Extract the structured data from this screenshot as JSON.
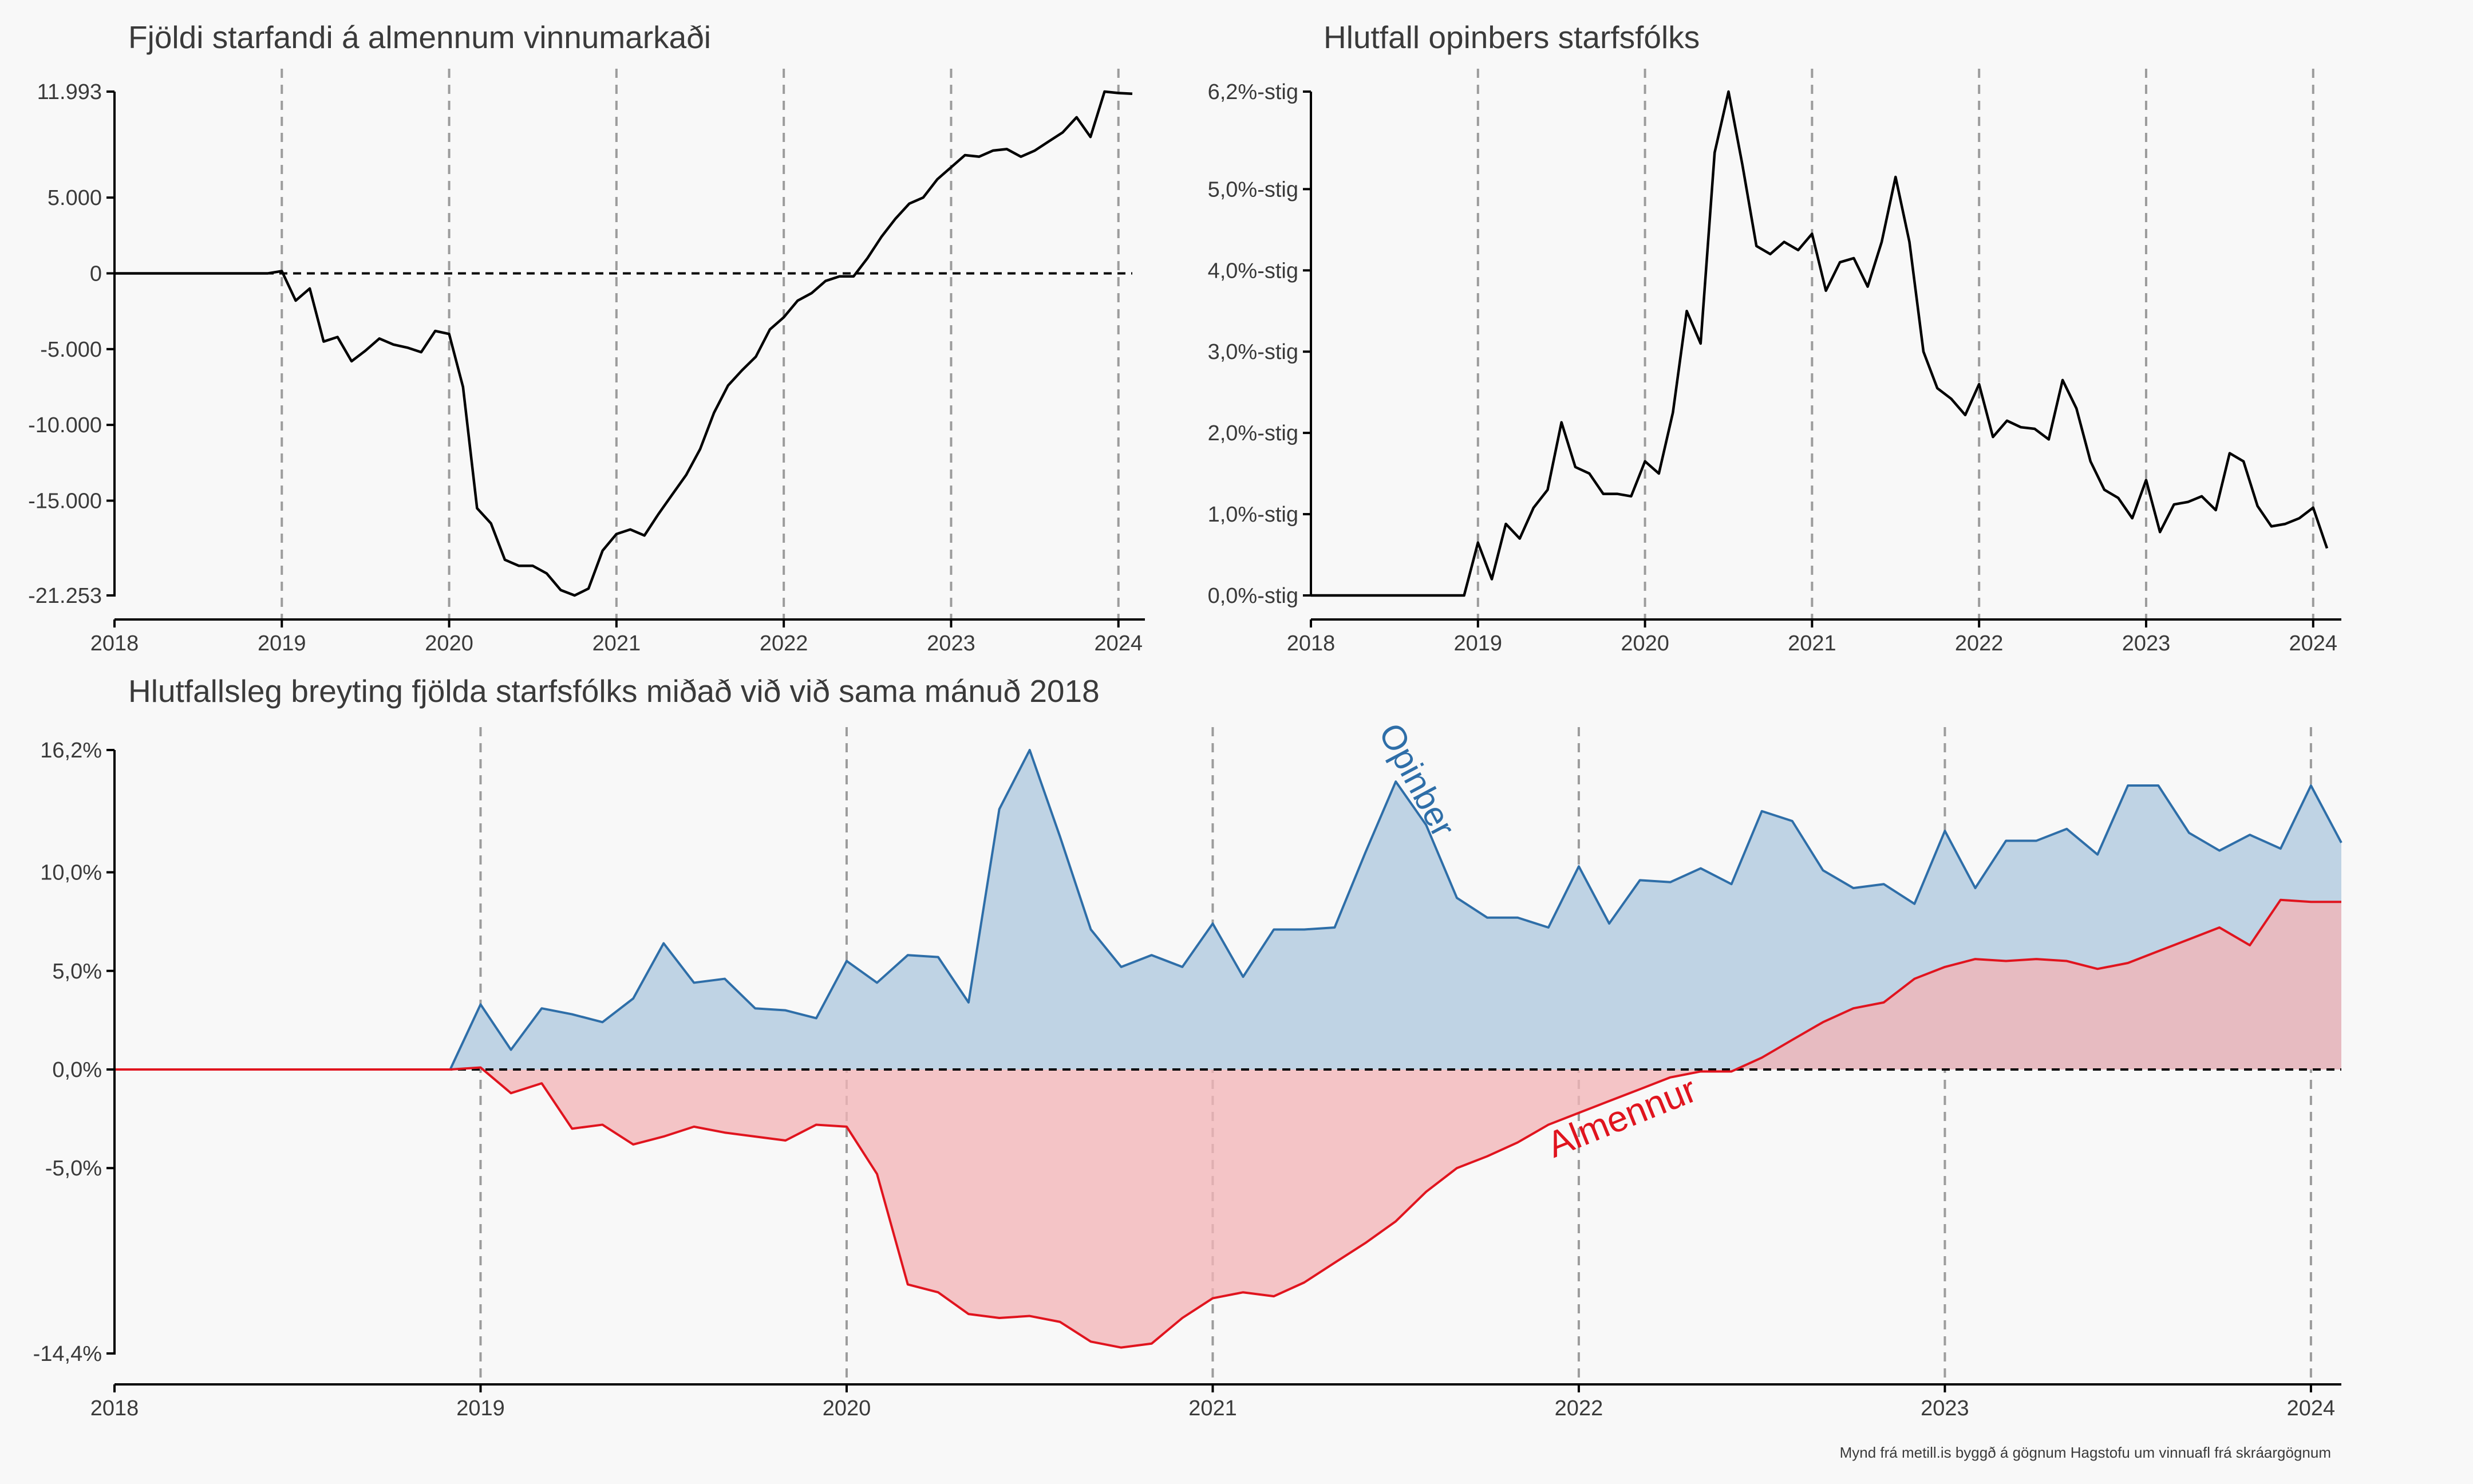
{
  "footer": {
    "caption": "Mynd frá metill.is byggð á gögnum Hagstofu um vinnuafl frá skráargögnum"
  },
  "colors": {
    "opinber": "#2e6ea8",
    "opinber_fill": "#bfd3e4",
    "almennur": "#e0141e",
    "almennur_fill": "#f2b5b7",
    "overlap_fill": "#b8a3b3",
    "line": "#000000"
  },
  "chart_data": [
    {
      "type": "line",
      "title": "Fjöldi starfandi á almennum vinnumarkaði",
      "x_ticks": [
        "2018",
        "2019",
        "2020",
        "2021",
        "2022",
        "2023",
        "2024"
      ],
      "y_ticks": [
        "11.993",
        "5.000",
        "0",
        "-5.000",
        "-10.000",
        "-15.000",
        "-21.253"
      ],
      "ylim": [
        -21253,
        11993
      ],
      "xlim": [
        2018,
        2024.083
      ],
      "grid": "vertical dashed at years",
      "series": [
        {
          "x": [
            2018,
            2018.917,
            2019.0,
            2019.083,
            2019.167,
            2019.25,
            2019.333,
            2019.417,
            2019.5,
            2019.583,
            2019.667,
            2019.75,
            2019.833,
            2019.917,
            2020.0,
            2020.083,
            2020.167,
            2020.25,
            2020.333,
            2020.417,
            2020.5,
            2020.583,
            2020.667,
            2020.75,
            2020.833,
            2020.917,
            2021.0,
            2021.083,
            2021.167,
            2021.25,
            2021.333,
            2021.417,
            2021.5,
            2021.583,
            2021.667,
            2021.75,
            2021.833,
            2021.917,
            2022.0,
            2022.083,
            2022.167,
            2022.25,
            2022.333,
            2022.417,
            2022.5,
            2022.583,
            2022.667,
            2022.75,
            2022.833,
            2022.917,
            2023.0,
            2023.083,
            2023.167,
            2023.25,
            2023.333,
            2023.417,
            2023.5,
            2023.583,
            2023.667,
            2023.75,
            2023.833,
            2023.917,
            2024.0,
            2024.083
          ],
          "y": [
            0,
            0,
            150,
            -1800,
            -1000,
            -4500,
            -4200,
            -5800,
            -5100,
            -4300,
            -4700,
            -4900,
            -5200,
            -3800,
            -4000,
            -7500,
            -15500,
            -16500,
            -18900,
            -19300,
            -19300,
            -19800,
            -20900,
            -21253,
            -20800,
            -18300,
            -17200,
            -16900,
            -17300,
            -15900,
            -14600,
            -13300,
            -11600,
            -9200,
            -7400,
            -6400,
            -5500,
            -3700,
            -2900,
            -1800,
            -1300,
            -500,
            -200,
            -200,
            1000,
            2400,
            3600,
            4600,
            5000,
            6200,
            7000,
            7800,
            7700,
            8100,
            8200,
            7700,
            8100,
            8700,
            9300,
            10300,
            9000,
            11993,
            11900,
            11850
          ]
        }
      ]
    },
    {
      "type": "line",
      "title": "Hlutfall opinbers starfsfólks",
      "x_ticks": [
        "2018",
        "2019",
        "2020",
        "2021",
        "2022",
        "2023",
        "2024"
      ],
      "y_ticks": [
        "6,2%-stig",
        "5,0%-stig",
        "4,0%-stig",
        "3,0%-stig",
        "2,0%-stig",
        "1,0%-stig",
        "0,0%-stig"
      ],
      "ylim": [
        0,
        6.2
      ],
      "xlim": [
        2018,
        2024.083
      ],
      "grid": "vertical dashed at years",
      "series": [
        {
          "x": [
            2018,
            2018.917,
            2019.0,
            2019.083,
            2019.167,
            2019.25,
            2019.333,
            2019.417,
            2019.5,
            2019.583,
            2019.667,
            2019.75,
            2019.833,
            2019.917,
            2020.0,
            2020.083,
            2020.167,
            2020.25,
            2020.333,
            2020.417,
            2020.5,
            2020.583,
            2020.667,
            2020.75,
            2020.833,
            2020.917,
            2021.0,
            2021.083,
            2021.167,
            2021.25,
            2021.333,
            2021.417,
            2021.5,
            2021.583,
            2021.667,
            2021.75,
            2021.833,
            2021.917,
            2022.0,
            2022.083,
            2022.167,
            2022.25,
            2022.333,
            2022.417,
            2022.5,
            2022.583,
            2022.667,
            2022.75,
            2022.833,
            2022.917,
            2023.0,
            2023.083,
            2023.167,
            2023.25,
            2023.333,
            2023.417,
            2023.5,
            2023.583,
            2023.667,
            2023.75,
            2023.833,
            2023.917,
            2024.0,
            2024.083
          ],
          "y": [
            0,
            0,
            0.65,
            0.2,
            0.88,
            0.7,
            1.08,
            1.3,
            2.13,
            1.58,
            1.5,
            1.25,
            1.25,
            1.22,
            1.65,
            1.5,
            2.25,
            3.5,
            3.1,
            5.45,
            6.2,
            5.3,
            4.3,
            4.2,
            4.35,
            4.25,
            4.45,
            3.75,
            4.1,
            4.15,
            3.8,
            4.35,
            5.15,
            4.35,
            3.0,
            2.55,
            2.42,
            2.22,
            2.6,
            1.95,
            2.15,
            2.07,
            2.05,
            1.92,
            2.65,
            2.3,
            1.65,
            1.3,
            1.2,
            0.95,
            1.42,
            0.78,
            1.12,
            1.15,
            1.22,
            1.05,
            1.75,
            1.65,
            1.1,
            0.85,
            0.88,
            0.95,
            1.08,
            0.58
          ]
        }
      ]
    },
    {
      "type": "area",
      "title": "Hlutfallsleg breyting fjölda starfsfólks miðað við við sama mánuð 2018",
      "x_ticks": [
        "2018",
        "2019",
        "2020",
        "2021",
        "2022",
        "2023",
        "2024"
      ],
      "y_ticks": [
        "16,2%",
        "10,0%",
        "5,0%",
        "0,0%",
        "-5,0%",
        "-14,4%"
      ],
      "ylim": [
        -14.4,
        16.2
      ],
      "xlim": [
        2018,
        2024.083
      ],
      "grid": "vertical dashed at years",
      "series": [
        {
          "name": "Opinber",
          "x": [
            2018,
            2018.917,
            2019.0,
            2019.083,
            2019.167,
            2019.25,
            2019.333,
            2019.417,
            2019.5,
            2019.583,
            2019.667,
            2019.75,
            2019.833,
            2019.917,
            2020.0,
            2020.083,
            2020.167,
            2020.25,
            2020.333,
            2020.417,
            2020.5,
            2020.583,
            2020.667,
            2020.75,
            2020.833,
            2020.917,
            2021.0,
            2021.083,
            2021.167,
            2021.25,
            2021.333,
            2021.417,
            2021.5,
            2021.583,
            2021.667,
            2021.75,
            2021.833,
            2021.917,
            2022.0,
            2022.083,
            2022.167,
            2022.25,
            2022.333,
            2022.417,
            2022.5,
            2022.583,
            2022.667,
            2022.75,
            2022.833,
            2022.917,
            2023.0,
            2023.083,
            2023.167,
            2023.25,
            2023.333,
            2023.417,
            2023.5,
            2023.583,
            2023.667,
            2023.75,
            2023.833,
            2023.917,
            2024.0,
            2024.083
          ],
          "y": [
            0,
            0,
            3.3,
            1.0,
            3.1,
            2.8,
            2.4,
            3.6,
            6.4,
            4.4,
            4.6,
            3.1,
            3.0,
            2.6,
            5.5,
            4.4,
            5.8,
            5.7,
            3.4,
            13.2,
            16.2,
            11.8,
            7.1,
            5.2,
            5.8,
            5.2,
            7.4,
            4.7,
            7.1,
            7.1,
            7.2,
            11.0,
            14.6,
            12.4,
            8.7,
            7.7,
            7.7,
            7.2,
            10.3,
            7.4,
            9.6,
            9.5,
            10.2,
            9.4,
            13.1,
            12.6,
            10.1,
            9.2,
            9.4,
            8.4,
            12.1,
            9.2,
            11.6,
            11.6,
            12.2,
            10.9,
            14.4,
            14.4,
            12.0,
            11.1,
            11.9,
            11.2,
            14.4,
            11.5
          ]
        },
        {
          "name": "Almennur",
          "x": [
            2018,
            2018.917,
            2019.0,
            2019.083,
            2019.167,
            2019.25,
            2019.333,
            2019.417,
            2019.5,
            2019.583,
            2019.667,
            2019.75,
            2019.833,
            2019.917,
            2020.0,
            2020.083,
            2020.167,
            2020.25,
            2020.333,
            2020.417,
            2020.5,
            2020.583,
            2020.667,
            2020.75,
            2020.833,
            2020.917,
            2021.0,
            2021.083,
            2021.167,
            2021.25,
            2021.333,
            2021.417,
            2021.5,
            2021.583,
            2021.667,
            2021.75,
            2021.833,
            2021.917,
            2022.0,
            2022.083,
            2022.167,
            2022.25,
            2022.333,
            2022.417,
            2022.5,
            2022.583,
            2022.667,
            2022.75,
            2022.833,
            2022.917,
            2023.0,
            2023.083,
            2023.167,
            2023.25,
            2023.333,
            2023.417,
            2023.5,
            2023.583,
            2023.667,
            2023.75,
            2023.833,
            2023.917,
            2024.0,
            2024.083
          ],
          "y": [
            0,
            0,
            0.1,
            -1.2,
            -0.7,
            -3.0,
            -2.8,
            -3.8,
            -3.4,
            -2.9,
            -3.2,
            -3.4,
            -3.6,
            -2.8,
            -2.9,
            -5.3,
            -10.9,
            -11.3,
            -12.4,
            -12.6,
            -12.5,
            -12.8,
            -13.8,
            -14.1,
            -13.9,
            -12.6,
            -11.6,
            -11.3,
            -11.5,
            -10.8,
            -9.8,
            -8.8,
            -7.7,
            -6.2,
            -5.0,
            -4.4,
            -3.7,
            -2.8,
            -2.2,
            -1.6,
            -1.0,
            -0.4,
            -0.1,
            -0.1,
            0.6,
            1.5,
            2.4,
            3.1,
            3.4,
            4.6,
            5.2,
            5.6,
            5.5,
            5.6,
            5.5,
            5.1,
            5.4,
            6.0,
            6.6,
            7.2,
            6.3,
            8.6,
            8.5,
            8.5
          ]
        }
      ],
      "annotations": [
        "Opinber",
        "Almennur"
      ]
    }
  ]
}
